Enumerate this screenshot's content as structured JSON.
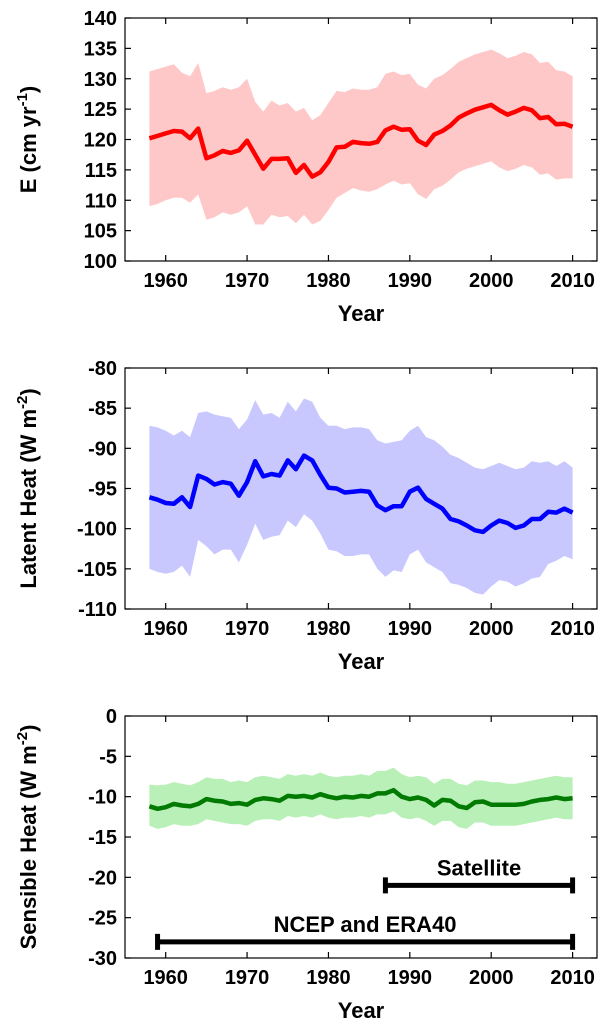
{
  "chart_data": [
    {
      "type": "line",
      "ylabel": {
        "base": "E (cm yr",
        "sup": "-1",
        "tail": ")"
      },
      "xlabel": "Year",
      "xlim": [
        1955,
        2013
      ],
      "ylim": [
        100,
        140
      ],
      "xticks": [
        1960,
        1970,
        1980,
        1990,
        2000,
        2010
      ],
      "yticks": [
        100,
        105,
        110,
        115,
        120,
        125,
        130,
        135,
        140
      ],
      "colors": {
        "line": "#ff0000",
        "band": "#ffc8c8"
      },
      "x": [
        1958,
        1959,
        1960,
        1961,
        1962,
        1963,
        1964,
        1965,
        1966,
        1967,
        1968,
        1969,
        1970,
        1971,
        1972,
        1973,
        1974,
        1975,
        1976,
        1977,
        1978,
        1979,
        1980,
        1981,
        1982,
        1983,
        1984,
        1985,
        1986,
        1987,
        1988,
        1989,
        1990,
        1991,
        1992,
        1993,
        1994,
        1995,
        1996,
        1997,
        1998,
        1999,
        2000,
        2001,
        2002,
        2003,
        2004,
        2005,
        2006,
        2007,
        2008,
        2009,
        2010
      ],
      "series": [
        {
          "values": [
            120.2,
            120.6,
            121.0,
            121.4,
            121.3,
            120.2,
            121.8,
            116.9,
            117.4,
            118.1,
            117.8,
            118.2,
            119.8,
            117.5,
            115.2,
            116.8,
            116.8,
            116.9,
            114.5,
            115.8,
            113.9,
            114.6,
            116.3,
            118.7,
            118.8,
            119.6,
            119.4,
            119.3,
            119.6,
            121.5,
            122.1,
            121.6,
            121.7,
            119.8,
            119.1,
            120.8,
            121.4,
            122.3,
            123.6,
            124.3,
            124.9,
            125.3,
            125.7,
            124.8,
            124.1,
            124.6,
            125.2,
            124.8,
            123.5,
            123.7,
            122.5,
            122.6,
            122.1
          ],
          "upper": [
            131.2,
            131.6,
            132.0,
            132.4,
            131.0,
            130.4,
            132.6,
            127.6,
            128.0,
            128.6,
            128.2,
            128.6,
            130.0,
            126.2,
            124.6,
            126.4,
            125.6,
            126.0,
            124.6,
            125.2,
            123.2,
            124.0,
            126.0,
            128.0,
            127.8,
            128.4,
            128.2,
            128.2,
            128.6,
            130.8,
            131.2,
            130.6,
            130.8,
            129.0,
            128.4,
            130.0,
            130.6,
            131.6,
            132.8,
            133.4,
            134.0,
            134.4,
            134.8,
            134.2,
            133.4,
            133.8,
            134.4,
            134.0,
            132.6,
            132.8,
            131.4,
            131.2,
            130.4
          ],
          "lower": [
            109.0,
            109.4,
            110.0,
            110.4,
            110.4,
            109.6,
            111.0,
            106.8,
            107.2,
            108.0,
            107.6,
            108.0,
            109.0,
            106.0,
            106.0,
            107.6,
            107.2,
            107.4,
            106.2,
            107.6,
            106.0,
            106.6,
            108.4,
            110.4,
            111.2,
            112.0,
            111.6,
            111.4,
            111.8,
            112.6,
            113.2,
            112.6,
            112.8,
            111.0,
            110.2,
            111.8,
            112.4,
            113.4,
            114.6,
            115.2,
            115.6,
            116.0,
            116.4,
            115.4,
            114.8,
            115.2,
            115.8,
            115.4,
            114.2,
            114.4,
            113.4,
            113.6,
            113.6
          ]
        }
      ]
    },
    {
      "type": "line",
      "ylabel": {
        "base": "Latent Heat (W m",
        "sup": "-2",
        "tail": ")"
      },
      "xlabel": "Year",
      "xlim": [
        1955,
        2013
      ],
      "ylim": [
        -110,
        -80
      ],
      "xticks": [
        1960,
        1970,
        1980,
        1990,
        2000,
        2010
      ],
      "yticks": [
        -110,
        -105,
        -100,
        -95,
        -90,
        -85,
        -80
      ],
      "colors": {
        "line": "#0000ff",
        "band": "#c8c8ff"
      },
      "x": [
        1958,
        1959,
        1960,
        1961,
        1962,
        1963,
        1964,
        1965,
        1966,
        1967,
        1968,
        1969,
        1970,
        1971,
        1972,
        1973,
        1974,
        1975,
        1976,
        1977,
        1978,
        1979,
        1980,
        1981,
        1982,
        1983,
        1984,
        1985,
        1986,
        1987,
        1988,
        1989,
        1990,
        1991,
        1992,
        1993,
        1994,
        1995,
        1996,
        1997,
        1998,
        1999,
        2000,
        2001,
        2002,
        2003,
        2004,
        2005,
        2006,
        2007,
        2008,
        2009,
        2010
      ],
      "series": [
        {
          "values": [
            -96.1,
            -96.4,
            -96.8,
            -96.9,
            -96.1,
            -97.3,
            -93.4,
            -93.8,
            -94.5,
            -94.2,
            -94.4,
            -95.9,
            -94.2,
            -91.6,
            -93.5,
            -93.2,
            -93.4,
            -91.5,
            -92.6,
            -90.9,
            -91.5,
            -93.3,
            -94.9,
            -95.0,
            -95.5,
            -95.4,
            -95.3,
            -95.4,
            -97.1,
            -97.7,
            -97.2,
            -97.2,
            -95.4,
            -94.9,
            -96.3,
            -96.9,
            -97.5,
            -98.8,
            -99.1,
            -99.6,
            -100.2,
            -100.4,
            -99.6,
            -99.0,
            -99.3,
            -99.9,
            -99.6,
            -98.8,
            -98.8,
            -97.9,
            -98.0,
            -97.5,
            -98.0
          ],
          "upper": [
            -87.2,
            -87.4,
            -87.8,
            -88.4,
            -87.8,
            -88.6,
            -85.6,
            -85.4,
            -85.8,
            -86.0,
            -86.2,
            -87.6,
            -86.4,
            -84.0,
            -85.8,
            -85.6,
            -86.2,
            -84.2,
            -85.4,
            -83.8,
            -84.2,
            -86.2,
            -87.2,
            -87.2,
            -87.6,
            -87.4,
            -87.4,
            -87.6,
            -89.0,
            -89.4,
            -89.2,
            -89.0,
            -87.8,
            -87.2,
            -88.6,
            -89.0,
            -89.8,
            -90.8,
            -91.2,
            -91.8,
            -92.4,
            -92.6,
            -92.2,
            -91.8,
            -92.2,
            -92.6,
            -92.4,
            -91.6,
            -91.8,
            -91.6,
            -92.2,
            -91.6,
            -92.4
          ],
          "lower": [
            -105.0,
            -105.4,
            -105.6,
            -105.4,
            -104.6,
            -106.0,
            -101.4,
            -102.2,
            -103.2,
            -102.6,
            -102.6,
            -104.2,
            -102.0,
            -99.4,
            -101.4,
            -101.0,
            -100.8,
            -99.0,
            -99.8,
            -98.2,
            -99.0,
            -100.6,
            -102.6,
            -102.8,
            -103.4,
            -103.4,
            -103.2,
            -103.2,
            -105.0,
            -106.0,
            -105.2,
            -105.4,
            -103.2,
            -102.6,
            -104.2,
            -104.8,
            -105.4,
            -106.8,
            -107.0,
            -107.4,
            -108.0,
            -108.2,
            -107.2,
            -106.4,
            -106.6,
            -107.2,
            -106.8,
            -106.2,
            -106.0,
            -104.4,
            -104.0,
            -103.4,
            -103.8
          ]
        }
      ]
    },
    {
      "type": "line",
      "ylabel": {
        "base": "Sensible Heat (W m",
        "sup": "-2",
        "tail": ")"
      },
      "xlabel": "Year",
      "xlim": [
        1955,
        2013
      ],
      "ylim": [
        -30,
        0
      ],
      "xticks": [
        1960,
        1970,
        1980,
        1990,
        2000,
        2010
      ],
      "yticks": [
        -30,
        -25,
        -20,
        -15,
        -10,
        -5,
        0
      ],
      "colors": {
        "line": "#007a00",
        "band": "#b8f0b8"
      },
      "x": [
        1958,
        1959,
        1960,
        1961,
        1962,
        1963,
        1964,
        1965,
        1966,
        1967,
        1968,
        1969,
        1970,
        1971,
        1972,
        1973,
        1974,
        1975,
        1976,
        1977,
        1978,
        1979,
        1980,
        1981,
        1982,
        1983,
        1984,
        1985,
        1986,
        1987,
        1988,
        1989,
        1990,
        1991,
        1992,
        1993,
        1994,
        1995,
        1996,
        1997,
        1998,
        1999,
        2000,
        2001,
        2002,
        2003,
        2004,
        2005,
        2006,
        2007,
        2008,
        2009,
        2010
      ],
      "series": [
        {
          "values": [
            -11.2,
            -11.5,
            -11.3,
            -10.9,
            -11.1,
            -11.2,
            -10.9,
            -10.3,
            -10.5,
            -10.6,
            -10.9,
            -10.8,
            -11.0,
            -10.4,
            -10.2,
            -10.3,
            -10.5,
            -9.9,
            -10.0,
            -9.9,
            -10.1,
            -9.7,
            -10.0,
            -10.2,
            -10.0,
            -10.1,
            -9.9,
            -10.0,
            -9.6,
            -9.6,
            -9.2,
            -10.0,
            -10.3,
            -10.1,
            -10.4,
            -11.1,
            -10.4,
            -10.5,
            -11.2,
            -11.4,
            -10.7,
            -10.6,
            -11.0,
            -11.0,
            -11.0,
            -11.0,
            -10.9,
            -10.6,
            -10.4,
            -10.3,
            -10.1,
            -10.3,
            -10.2
          ],
          "upper": [
            -8.5,
            -8.6,
            -8.5,
            -8.2,
            -8.4,
            -8.6,
            -8.2,
            -7.6,
            -7.8,
            -7.8,
            -8.2,
            -8.0,
            -8.2,
            -7.6,
            -7.4,
            -7.6,
            -7.8,
            -7.2,
            -7.4,
            -7.2,
            -7.4,
            -7.0,
            -7.4,
            -7.6,
            -7.4,
            -7.4,
            -7.2,
            -7.4,
            -6.8,
            -6.8,
            -6.4,
            -7.2,
            -7.6,
            -7.4,
            -7.6,
            -8.4,
            -7.8,
            -7.8,
            -8.4,
            -8.6,
            -8.0,
            -8.0,
            -8.2,
            -8.2,
            -8.4,
            -8.4,
            -8.2,
            -8.0,
            -7.8,
            -7.6,
            -7.4,
            -7.6,
            -7.6
          ],
          "lower": [
            -13.6,
            -14.0,
            -13.8,
            -13.4,
            -13.6,
            -13.6,
            -13.4,
            -12.8,
            -13.0,
            -13.2,
            -13.4,
            -13.4,
            -13.6,
            -13.0,
            -12.8,
            -12.8,
            -13.0,
            -12.4,
            -12.6,
            -12.4,
            -12.6,
            -12.2,
            -12.6,
            -12.8,
            -12.6,
            -12.6,
            -12.4,
            -12.6,
            -12.2,
            -12.2,
            -11.8,
            -12.6,
            -12.8,
            -12.6,
            -13.0,
            -13.6,
            -13.0,
            -13.0,
            -13.8,
            -14.0,
            -13.2,
            -13.2,
            -13.6,
            -13.6,
            -13.6,
            -13.6,
            -13.4,
            -13.2,
            -13.0,
            -12.8,
            -12.6,
            -12.8,
            -12.8
          ]
        }
      ],
      "annotations": [
        {
          "label": "Satellite",
          "start": 1987,
          "end": 2010,
          "y": -21
        },
        {
          "label": "NCEP and ERA40",
          "start": 1959,
          "end": 2010,
          "y": -28
        }
      ]
    }
  ]
}
